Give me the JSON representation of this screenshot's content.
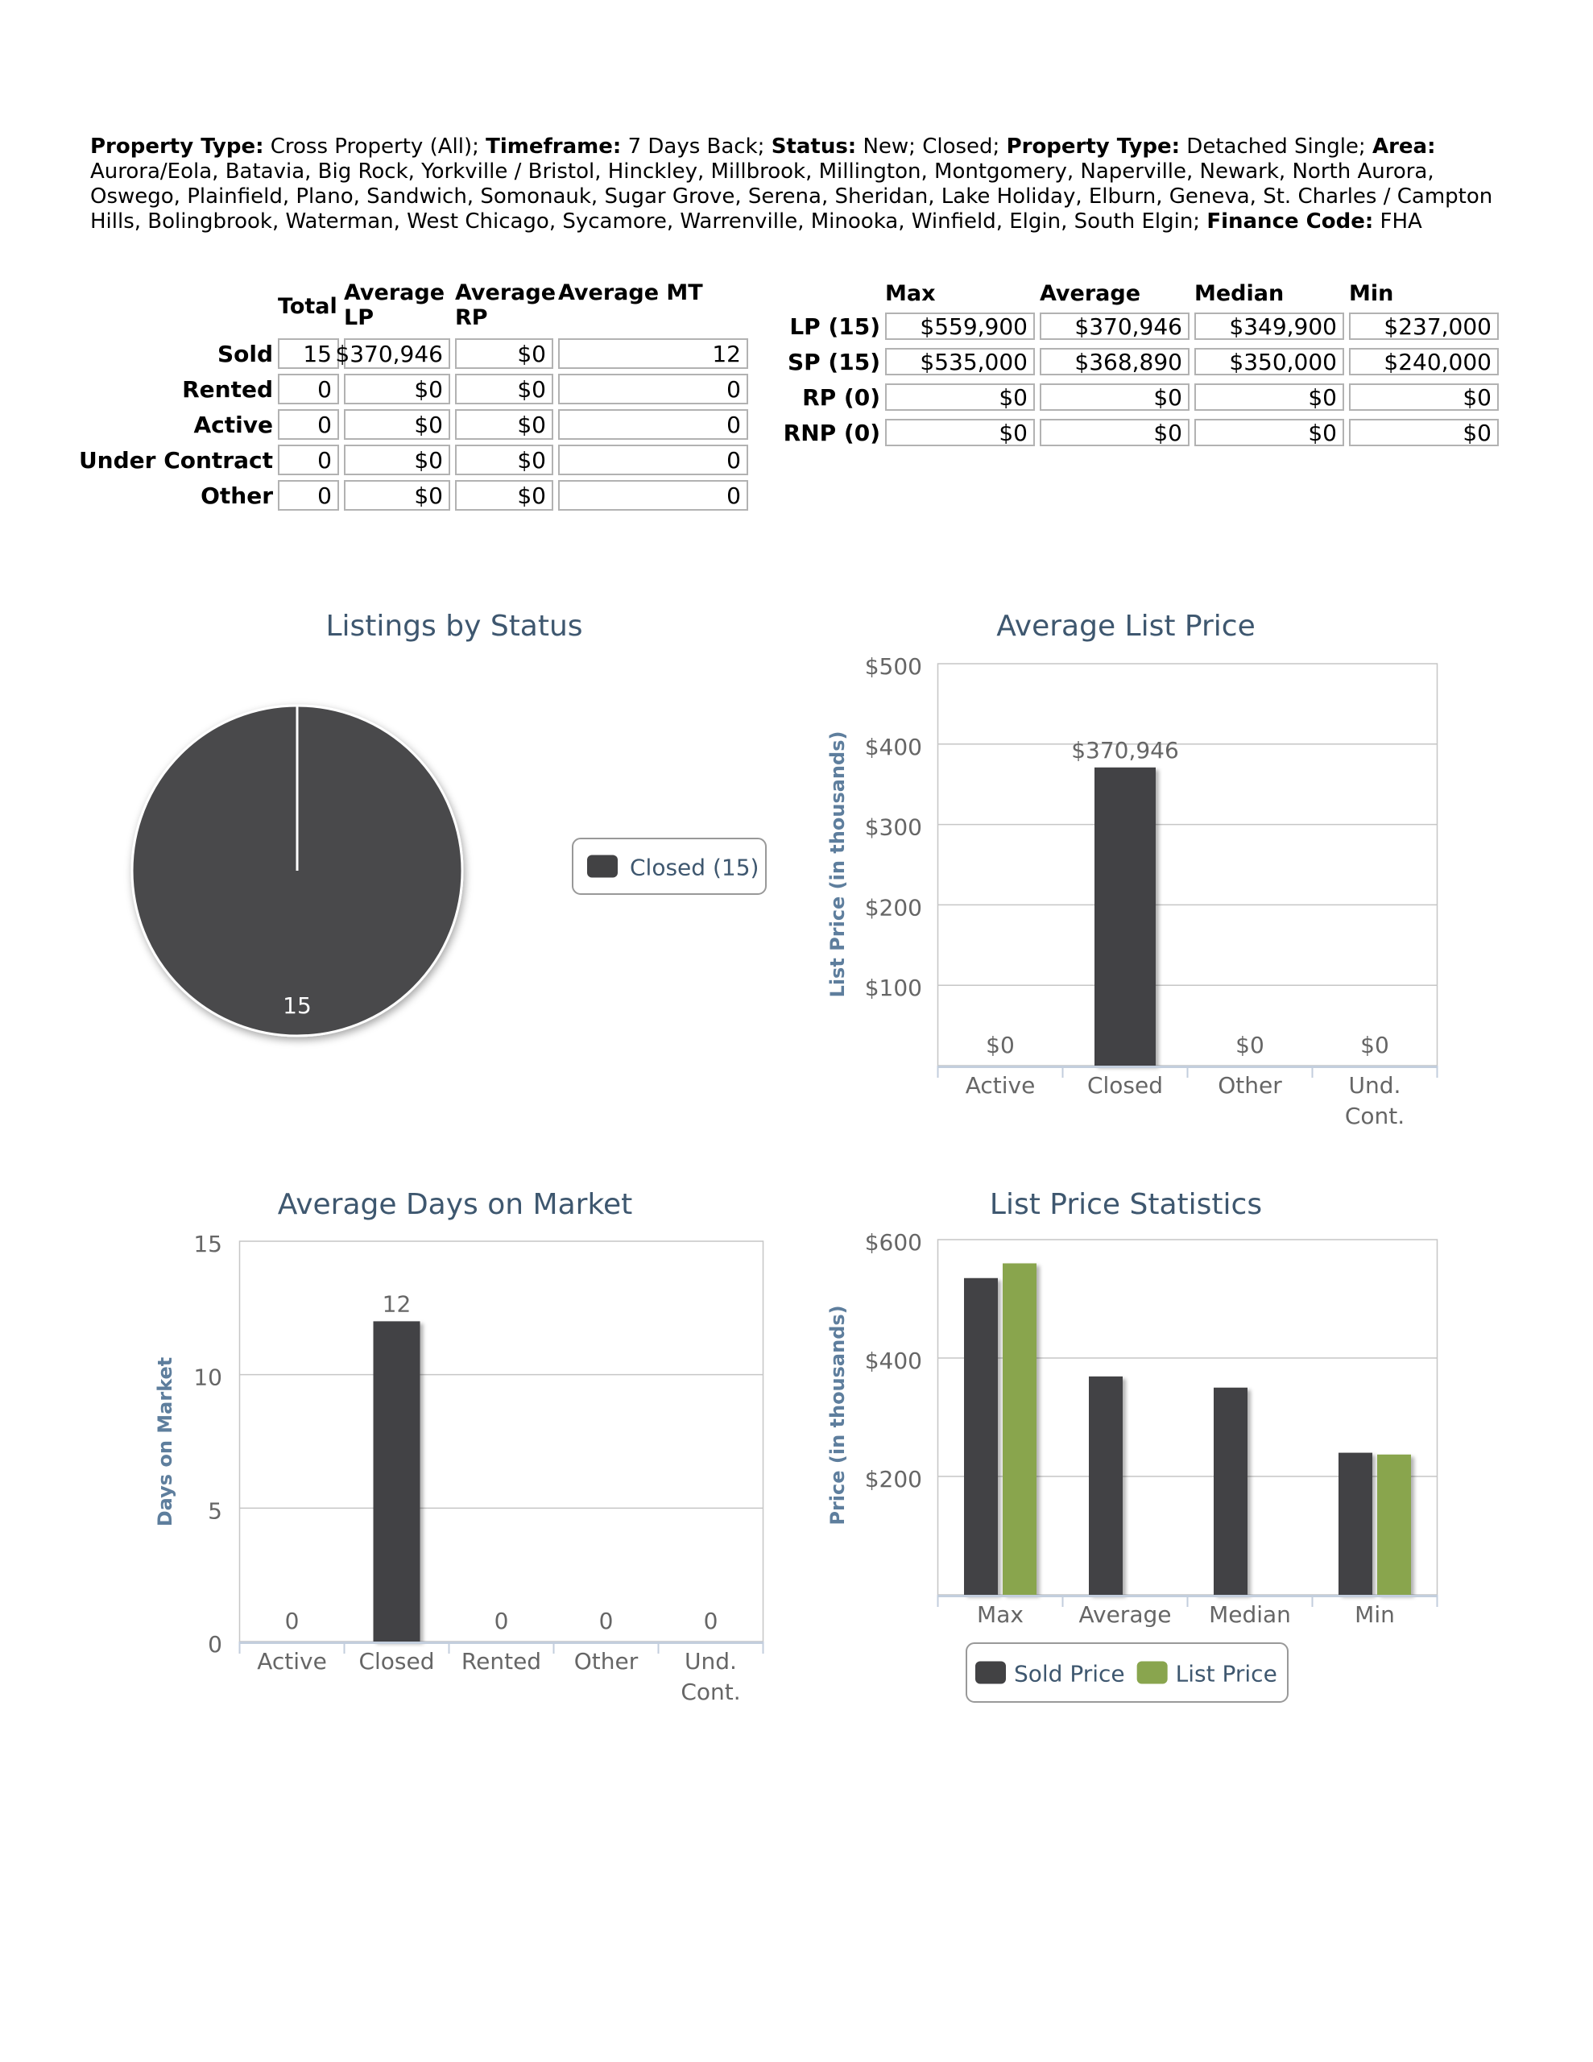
{
  "filters": {
    "segments": [
      {
        "label": "Property Type:",
        "value": " Cross Property (All); "
      },
      {
        "label": "Timeframe:",
        "value": " 7 Days Back; "
      },
      {
        "label": "Status:",
        "value": " New; Closed; "
      },
      {
        "label": "Property Type:",
        "value": " Detached Single; "
      },
      {
        "label": "Area:",
        "value": " Aurora/Eola, Batavia, Big Rock, Yorkville / Bristol, Hinckley, Millbrook, Millington, Montgomery, Naperville, Newark, North Aurora, Oswego, Plainfield, Plano, Sandwich, Somonauk, Sugar Grove, Serena, Sheridan, Lake Holiday, Elburn, Geneva, St. Charles / Campton Hills, Bolingbrook, Waterman, West Chicago, Sycamore, Warrenville, Minooka, Winfield, Elgin, South Elgin; "
      },
      {
        "label": "Finance Code:",
        "value": " FHA"
      }
    ]
  },
  "summary_table": {
    "columns": [
      "Total",
      "Average LP",
      "Average RP",
      "Average MT"
    ],
    "rows": [
      {
        "label": "Sold",
        "total": "15",
        "avg_lp": "$370,946",
        "avg_rp": "$0",
        "avg_mt": "12"
      },
      {
        "label": "Rented",
        "total": "0",
        "avg_lp": "$0",
        "avg_rp": "$0",
        "avg_mt": "0"
      },
      {
        "label": "Active",
        "total": "0",
        "avg_lp": "$0",
        "avg_rp": "$0",
        "avg_mt": "0"
      },
      {
        "label": "Under Contract",
        "total": "0",
        "avg_lp": "$0",
        "avg_rp": "$0",
        "avg_mt": "0"
      },
      {
        "label": "Other",
        "total": "0",
        "avg_lp": "$0",
        "avg_rp": "$0",
        "avg_mt": "0"
      }
    ]
  },
  "price_table": {
    "columns": [
      "Max",
      "Average",
      "Median",
      "Min"
    ],
    "rows": [
      {
        "label": "LP (15)",
        "max": "$559,900",
        "average": "$370,946",
        "median": "$349,900",
        "min": "$237,000"
      },
      {
        "label": "SP (15)",
        "max": "$535,000",
        "average": "$368,890",
        "median": "$350,000",
        "min": "$240,000"
      },
      {
        "label": "RP (0)",
        "max": "$0",
        "average": "$0",
        "median": "$0",
        "min": "$0"
      },
      {
        "label": "RNP (0)",
        "max": "$0",
        "average": "$0",
        "median": "$0",
        "min": "$0"
      }
    ]
  },
  "colors": {
    "dark_series": "#424244",
    "green_series": "#89a54e",
    "title_text": "#3e576f",
    "axis_title_text": "#5e7e9d",
    "tick_text": "#666666",
    "axis_line": "#c3cedd",
    "grid_line": "#c6c6c6",
    "cell_border": "#b2b2b2",
    "legend_border": "#999999"
  },
  "chart_data": [
    {
      "id": "listings-by-status",
      "type": "pie",
      "title": "Listings by Status",
      "slices": [
        {
          "label": "Closed",
          "value": 15,
          "color": "#4a4a4c",
          "data_label": "15"
        }
      ],
      "legend": {
        "position": "right",
        "items": [
          {
            "label": "Closed (15)",
            "color": "#424244"
          }
        ]
      }
    },
    {
      "id": "average-list-price",
      "type": "bar",
      "title": "Average List Price",
      "xlabel": "",
      "ylabel": "List Price (in thousands)",
      "categories": [
        "Active",
        "Closed",
        "Other",
        "Und. Cont."
      ],
      "values": [
        0,
        370.946,
        0,
        0
      ],
      "value_labels": [
        "$0",
        "$370,946",
        "$0",
        "$0"
      ],
      "bar_color": "#424244",
      "ylim": [
        0,
        500
      ],
      "ytick_values": [
        500,
        400,
        300,
        200,
        100
      ],
      "ytick_labels": [
        "$500",
        "$400",
        "$300",
        "$200",
        "$100"
      ],
      "grid": true,
      "legend": null
    },
    {
      "id": "average-days-on-market",
      "type": "bar",
      "title": "Average Days on Market",
      "xlabel": "",
      "ylabel": "Days on Market",
      "categories": [
        "Active",
        "Closed",
        "Rented",
        "Other",
        "Und. Cont."
      ],
      "values": [
        0,
        12,
        0,
        0,
        0
      ],
      "value_labels": [
        "0",
        "12",
        "0",
        "0",
        "0"
      ],
      "bar_color": "#424244",
      "ylim": [
        0,
        15
      ],
      "ytick_values": [
        15,
        10,
        5,
        0
      ],
      "ytick_labels": [
        "15",
        "10",
        "5",
        "0"
      ],
      "grid": true,
      "legend": null
    },
    {
      "id": "list-price-statistics",
      "type": "grouped-bar",
      "title": "List Price Statistics",
      "xlabel": "",
      "ylabel": "Price (in thousands)",
      "categories": [
        "Max",
        "Average",
        "Median",
        "Min"
      ],
      "series": [
        {
          "name": "Sold Price",
          "color": "#424244",
          "values": [
            535,
            368.89,
            350,
            240
          ]
        },
        {
          "name": "List Price",
          "color": "#89a54e",
          "values": [
            559.9,
            null,
            null,
            237
          ]
        }
      ],
      "ylim": [
        0,
        600
      ],
      "ytick_values": [
        600,
        400,
        200
      ],
      "ytick_labels": [
        "$600",
        "$400",
        "$200"
      ],
      "grid": true,
      "legend": {
        "position": "bottom",
        "items": [
          {
            "label": "Sold Price",
            "color": "#424244"
          },
          {
            "label": "List Price",
            "color": "#89a54e"
          }
        ]
      }
    }
  ]
}
